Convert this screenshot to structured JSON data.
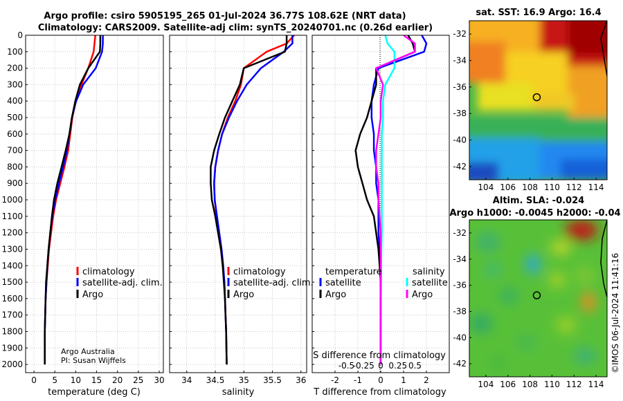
{
  "title_line1": "Argo profile: csiro 5905195_265 01-Jul-2024 36.77S 108.62E (NRT data)",
  "title_line2": "Climatology: CARS2009. Satellite-adj clim: synTS_20240701.nc (0.26d earlier)",
  "credit": {
    "org": "Argo Australia",
    "pi": "PI: Susan Wijffels"
  },
  "stamp": "©IMOS 06-Jul-2024 11:41:16",
  "colors": {
    "clim": "#ff0000",
    "sat": "#0000ff",
    "argo": "#000000",
    "sat_s": "#00ffff",
    "argo_s": "#ff00ff"
  },
  "chart_data": [
    {
      "type": "line",
      "name": "temperature-panel",
      "xlabel": "temperature (deg C)",
      "xlim": [
        -2,
        31
      ],
      "ylim": [
        2050,
        0
      ],
      "xticks": [
        0,
        5,
        10,
        15,
        20,
        25,
        30
      ],
      "yticks": [
        0,
        100,
        200,
        300,
        400,
        500,
        600,
        700,
        800,
        900,
        1000,
        1100,
        1200,
        1300,
        1400,
        1500,
        1600,
        1700,
        1800,
        1900,
        2000
      ],
      "legend": [
        "climatology",
        "satellite-adj. clim.",
        "Argo"
      ],
      "series": [
        {
          "name": "climatology",
          "color": "#ff0000",
          "x": [
            14.7,
            14.5,
            14.3,
            13.0,
            11.4,
            10.0,
            9.2,
            8.7,
            8.2,
            7.3,
            6.3,
            5.3,
            4.6,
            4.1,
            3.6,
            3.3,
            3.0,
            2.8,
            2.7,
            2.6,
            2.6
          ],
          "y": [
            0,
            50,
            100,
            200,
            300,
            400,
            500,
            600,
            700,
            800,
            900,
            1000,
            1100,
            1200,
            1300,
            1400,
            1500,
            1600,
            1700,
            1800,
            2000
          ]
        },
        {
          "name": "satellite-adj. clim.",
          "color": "#0000ff",
          "x": [
            16.5,
            16.5,
            16.3,
            14.8,
            11.8,
            10.1,
            9.1,
            8.5,
            7.9,
            7.0,
            6.0,
            5.1,
            4.4,
            3.9,
            3.5,
            3.2,
            3.0,
            2.8,
            2.7,
            2.6,
            2.6
          ],
          "y": [
            0,
            50,
            100,
            200,
            300,
            400,
            500,
            600,
            700,
            800,
            900,
            1000,
            1100,
            1200,
            1300,
            1400,
            1500,
            1600,
            1700,
            1800,
            2000
          ]
        },
        {
          "name": "Argo",
          "color": "#000000",
          "x": [
            15.9,
            15.9,
            15.8,
            13.0,
            11.0,
            9.9,
            9.1,
            8.5,
            7.6,
            6.6,
            5.6,
            4.8,
            4.3,
            3.9,
            3.5,
            3.2,
            2.9,
            2.8,
            2.7,
            2.6,
            2.6
          ],
          "y": [
            0,
            50,
            100,
            200,
            300,
            400,
            500,
            600,
            700,
            800,
            900,
            1000,
            1100,
            1200,
            1300,
            1400,
            1500,
            1600,
            1700,
            1800,
            2000
          ]
        }
      ]
    },
    {
      "type": "line",
      "name": "salinity-panel",
      "xlabel": "salinity",
      "xlim": [
        33.7,
        36.1
      ],
      "ylim": [
        2050,
        0
      ],
      "xticks": [
        34,
        34.5,
        35,
        35.5,
        36
      ],
      "legend": [
        "climatology",
        "satellite-adj. clim.",
        "Argo"
      ],
      "series": [
        {
          "name": "climatology",
          "color": "#ff0000",
          "x": [
            35.88,
            35.75,
            35.4,
            35.0,
            34.95,
            34.85,
            34.72,
            34.62,
            34.55,
            34.5,
            34.48,
            34.49,
            34.52,
            34.55,
            34.6,
            34.63,
            34.66,
            34.67,
            34.68,
            34.69,
            34.7
          ],
          "y": [
            0,
            50,
            100,
            200,
            300,
            400,
            500,
            600,
            700,
            800,
            900,
            1000,
            1100,
            1200,
            1300,
            1400,
            1500,
            1600,
            1700,
            1800,
            2000
          ]
        },
        {
          "name": "satellite-adj. clim.",
          "color": "#0000ff",
          "x": [
            35.85,
            35.85,
            35.7,
            35.3,
            35.05,
            34.88,
            34.74,
            34.62,
            34.55,
            34.5,
            34.48,
            34.49,
            34.53,
            34.57,
            34.61,
            34.64,
            34.66,
            34.67,
            34.68,
            34.69,
            34.7
          ],
          "y": [
            0,
            50,
            100,
            200,
            300,
            400,
            500,
            600,
            700,
            800,
            900,
            1000,
            1100,
            1200,
            1300,
            1400,
            1500,
            1600,
            1700,
            1800,
            2000
          ]
        },
        {
          "name": "Argo",
          "color": "#000000",
          "x": [
            35.75,
            35.75,
            35.72,
            35.0,
            34.93,
            34.8,
            34.67,
            34.57,
            34.48,
            34.42,
            34.42,
            34.44,
            34.5,
            34.55,
            34.6,
            34.63,
            34.65,
            34.67,
            34.68,
            34.69,
            34.7
          ],
          "y": [
            0,
            50,
            100,
            200,
            300,
            400,
            500,
            600,
            700,
            800,
            900,
            1000,
            1100,
            1200,
            1300,
            1400,
            1500,
            1600,
            1700,
            1800,
            2000
          ]
        }
      ]
    },
    {
      "type": "line",
      "name": "difference-panel",
      "xlabel": "T difference from climatology",
      "secondary_xlabel": "S difference from climatology",
      "xlim": [
        -3,
        3
      ],
      "ylim": [
        2050,
        0
      ],
      "xticks": [
        -2,
        -1,
        0,
        1,
        2
      ],
      "secondary_xticks": [
        "-0.5",
        "-0.25",
        "0",
        "0.25",
        "0.5"
      ],
      "legend_headers": [
        "temperature",
        "salinity"
      ],
      "legend": [
        "satellite",
        "Argo",
        "satellite",
        "Argo"
      ],
      "series": [
        {
          "name": "temperature satellite",
          "color": "#0000ff",
          "x": [
            1.8,
            2.0,
            1.9,
            -0.1,
            -0.3,
            -0.4,
            -0.4,
            -0.3,
            -0.3,
            -0.2,
            -0.2,
            -0.1,
            -0.1,
            -0.1,
            -0.05,
            0,
            0,
            0,
            0,
            0,
            0
          ],
          "y": [
            0,
            50,
            100,
            200,
            300,
            400,
            500,
            600,
            700,
            800,
            900,
            1000,
            1100,
            1200,
            1300,
            1400,
            1500,
            1600,
            1700,
            1800,
            2000
          ]
        },
        {
          "name": "temperature Argo",
          "color": "#000000",
          "x": [
            1.2,
            1.4,
            1.5,
            -0.2,
            -0.2,
            -0.4,
            -0.6,
            -0.9,
            -1.1,
            -1.0,
            -0.8,
            -0.6,
            -0.3,
            -0.2,
            -0.1,
            -0.05,
            0,
            0,
            0,
            0,
            0
          ],
          "y": [
            0,
            50,
            100,
            200,
            300,
            400,
            500,
            600,
            700,
            800,
            900,
            1000,
            1100,
            1200,
            1300,
            1400,
            1500,
            1600,
            1700,
            1800,
            2000
          ]
        },
        {
          "name": "salinity satellite",
          "color": "#00ffff",
          "x": [
            0.2,
            0.3,
            0.6,
            0.6,
            0.2,
            0.1,
            0.1,
            0.05,
            0.05,
            0.05,
            0.05,
            0.05,
            0.05,
            0.05,
            0.03,
            0.02,
            0.02,
            0.01,
            0.01,
            0.01,
            0.01
          ],
          "y": [
            0,
            50,
            100,
            200,
            300,
            400,
            500,
            600,
            700,
            800,
            900,
            1000,
            1100,
            1200,
            1300,
            1400,
            1500,
            1600,
            1700,
            1800,
            2000
          ]
        },
        {
          "name": "salinity Argo",
          "color": "#ff00ff",
          "x": [
            1.0,
            1.5,
            1.5,
            -0.2,
            0.1,
            0.0,
            0.0,
            -0.1,
            -0.2,
            -0.2,
            -0.1,
            -0.1,
            -0.05,
            0.0,
            0.0,
            0.0,
            0.0,
            0.0,
            0.0,
            0.0,
            0.0
          ],
          "y": [
            0,
            50,
            100,
            200,
            300,
            400,
            500,
            600,
            700,
            800,
            900,
            1000,
            1100,
            1200,
            1300,
            1400,
            1500,
            1600,
            1700,
            1800,
            2000
          ]
        }
      ]
    },
    {
      "type": "heatmap",
      "name": "sst-map",
      "title": "sat. SST: 16.9 Argo: 16.4",
      "xlim": [
        102.5,
        115
      ],
      "ylim": [
        -43,
        -31
      ],
      "xticks": [
        104,
        106,
        108,
        110,
        112,
        114
      ],
      "yticks": [
        -32,
        -34,
        -36,
        -38,
        -40,
        -42
      ],
      "marker": {
        "lon": 108.62,
        "lat": -36.77
      }
    },
    {
      "type": "heatmap",
      "name": "sla-map",
      "title": "Altim. SLA: -0.024",
      "subtitle": "Argo h1000: -0.0045 h2000: -0.04",
      "xlim": [
        102.5,
        115
      ],
      "ylim": [
        -43,
        -31
      ],
      "xticks": [
        104,
        106,
        108,
        110,
        112,
        114
      ],
      "yticks": [
        -32,
        -34,
        -36,
        -38,
        -40,
        -42
      ],
      "marker": {
        "lon": 108.62,
        "lat": -36.77
      }
    }
  ]
}
